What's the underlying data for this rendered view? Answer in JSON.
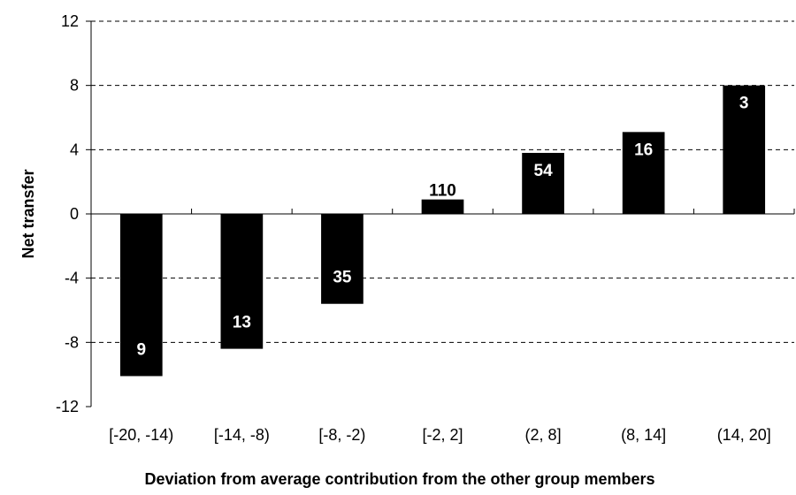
{
  "chart_data": {
    "type": "bar",
    "title": "",
    "xlabel": "Deviation from average contribution from the other group members",
    "ylabel": "Net transfer",
    "categories": [
      "[-20, -14)",
      "[-14, -8)",
      "[-8, -2)",
      "[-2, 2]",
      "(2, 8]",
      "(8, 14]",
      "(14, 20]"
    ],
    "values": [
      -10.1,
      -8.4,
      -5.6,
      0.9,
      3.8,
      5.1,
      8.0
    ],
    "bar_labels": [
      "9",
      "13",
      "35",
      "110",
      "54",
      "16",
      "3"
    ],
    "ylim": [
      -12,
      12
    ],
    "yticks": [
      "-12",
      "-8",
      "-4",
      "0",
      "4",
      "8",
      "12"
    ],
    "grid": "horizontal dashed",
    "legend": "none",
    "bar_color": "#000000",
    "bar_label_color_inside": "#ffffff",
    "bar_label_color_outside": "#000000"
  }
}
